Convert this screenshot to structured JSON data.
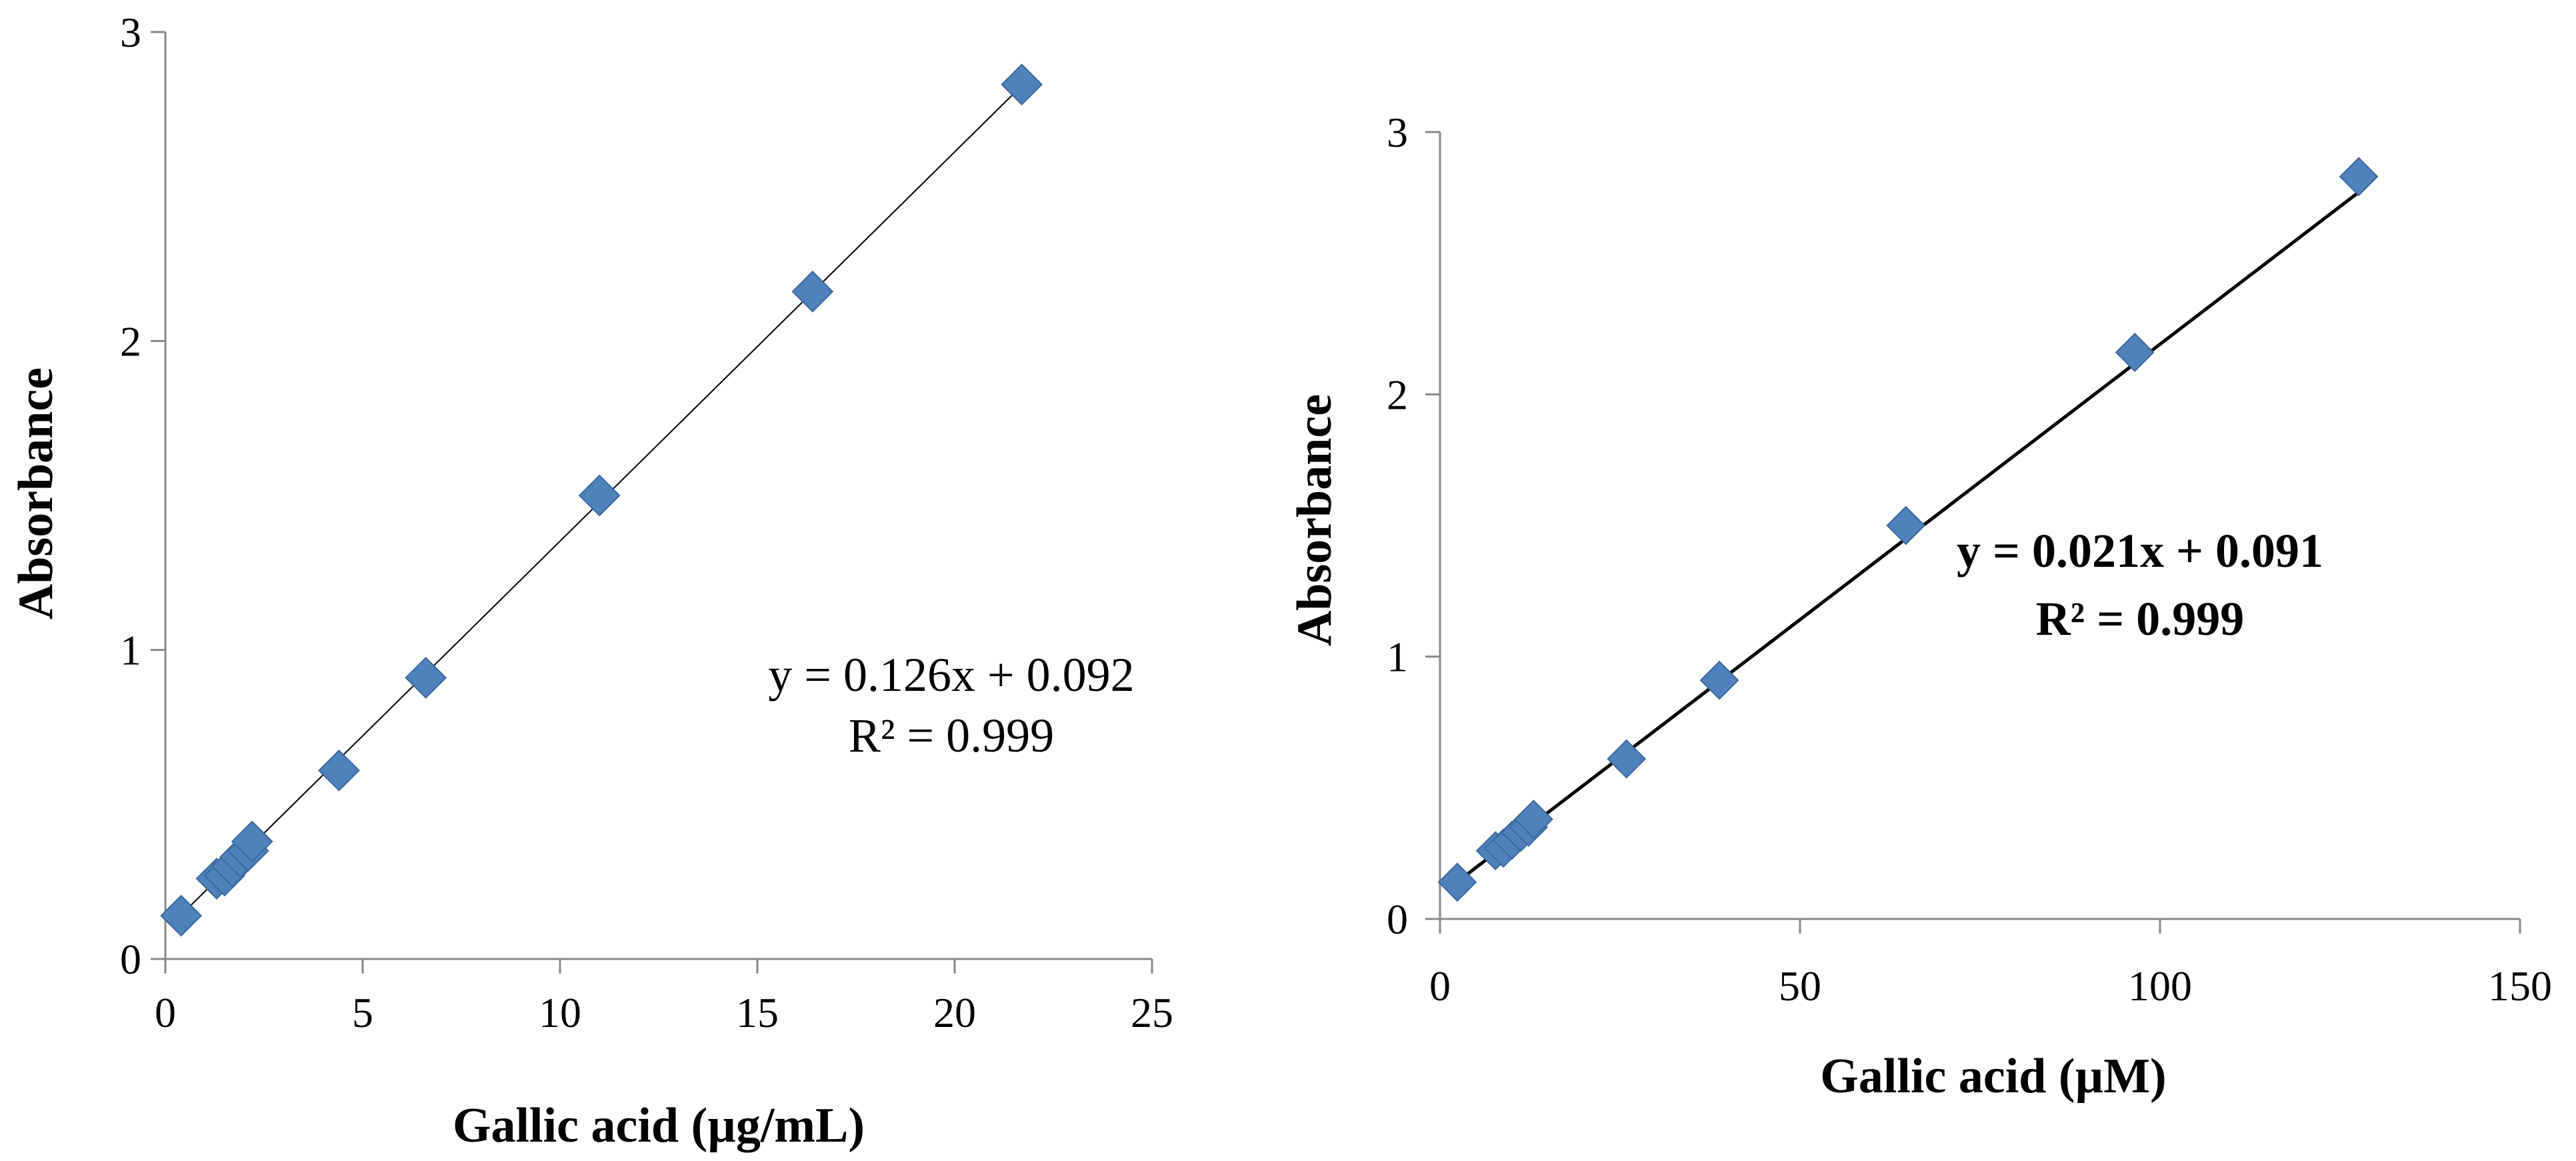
{
  "chart_data": [
    {
      "type": "scatter",
      "title": "",
      "xlabel": "Gallic acid (µg/mL)",
      "ylabel": "Absorbance",
      "xlim": [
        0,
        25
      ],
      "ylim": [
        0,
        3
      ],
      "xticks": [
        0,
        5,
        10,
        15,
        20,
        25
      ],
      "yticks": [
        0,
        1,
        2,
        3
      ],
      "x_tick_labels": [
        "0",
        "5",
        "10",
        "15",
        "20",
        "25"
      ],
      "y_tick_labels": [
        "0",
        "1",
        "2",
        "3"
      ],
      "series": [
        {
          "name": "Absorbance",
          "marker": "diamond",
          "color": "#4F81BD",
          "x": [
            0.4,
            1.3,
            1.5,
            1.7,
            1.9,
            2.1,
            2.2,
            4.4,
            6.6,
            11.0,
            16.4,
            21.7
          ],
          "y": [
            0.14,
            0.26,
            0.27,
            0.3,
            0.33,
            0.35,
            0.38,
            0.61,
            0.91,
            1.5,
            2.16,
            2.83
          ]
        }
      ],
      "trendline": {
        "slope": 0.126,
        "intercept": 0.092,
        "x_range": [
          0.4,
          21.7
        ],
        "color": "#000000"
      },
      "annotation": {
        "line1": "y = 0.126x + 0.092",
        "line2": "R² = 0.999",
        "bold": false
      }
    },
    {
      "type": "scatter",
      "title": "",
      "xlabel": "Gallic acid (µM)",
      "ylabel": "Absorbance",
      "xlim": [
        0,
        150
      ],
      "ylim": [
        0,
        3
      ],
      "xticks": [
        0,
        50,
        100,
        150
      ],
      "yticks": [
        0,
        1,
        2,
        3
      ],
      "x_tick_labels": [
        "0",
        "50",
        "100",
        "150"
      ],
      "y_tick_labels": [
        "0",
        "1",
        "2",
        "3"
      ],
      "series": [
        {
          "name": "Absorbance",
          "marker": "diamond",
          "color": "#4F81BD",
          "x": [
            2.4,
            7.7,
            8.8,
            10.0,
            11.2,
            12.3,
            13.0,
            25.9,
            38.8,
            64.7,
            96.5,
            127.6
          ],
          "y": [
            0.14,
            0.26,
            0.27,
            0.3,
            0.33,
            0.35,
            0.38,
            0.61,
            0.91,
            1.5,
            2.16,
            2.83
          ]
        }
      ],
      "trendline": {
        "slope": 0.021,
        "intercept": 0.091,
        "x_range": [
          2.4,
          127.6
        ],
        "color": "#000000"
      },
      "annotation": {
        "line1": "y = 0.021x + 0.091",
        "line2": "R² = 0.999",
        "bold": true
      }
    }
  ]
}
